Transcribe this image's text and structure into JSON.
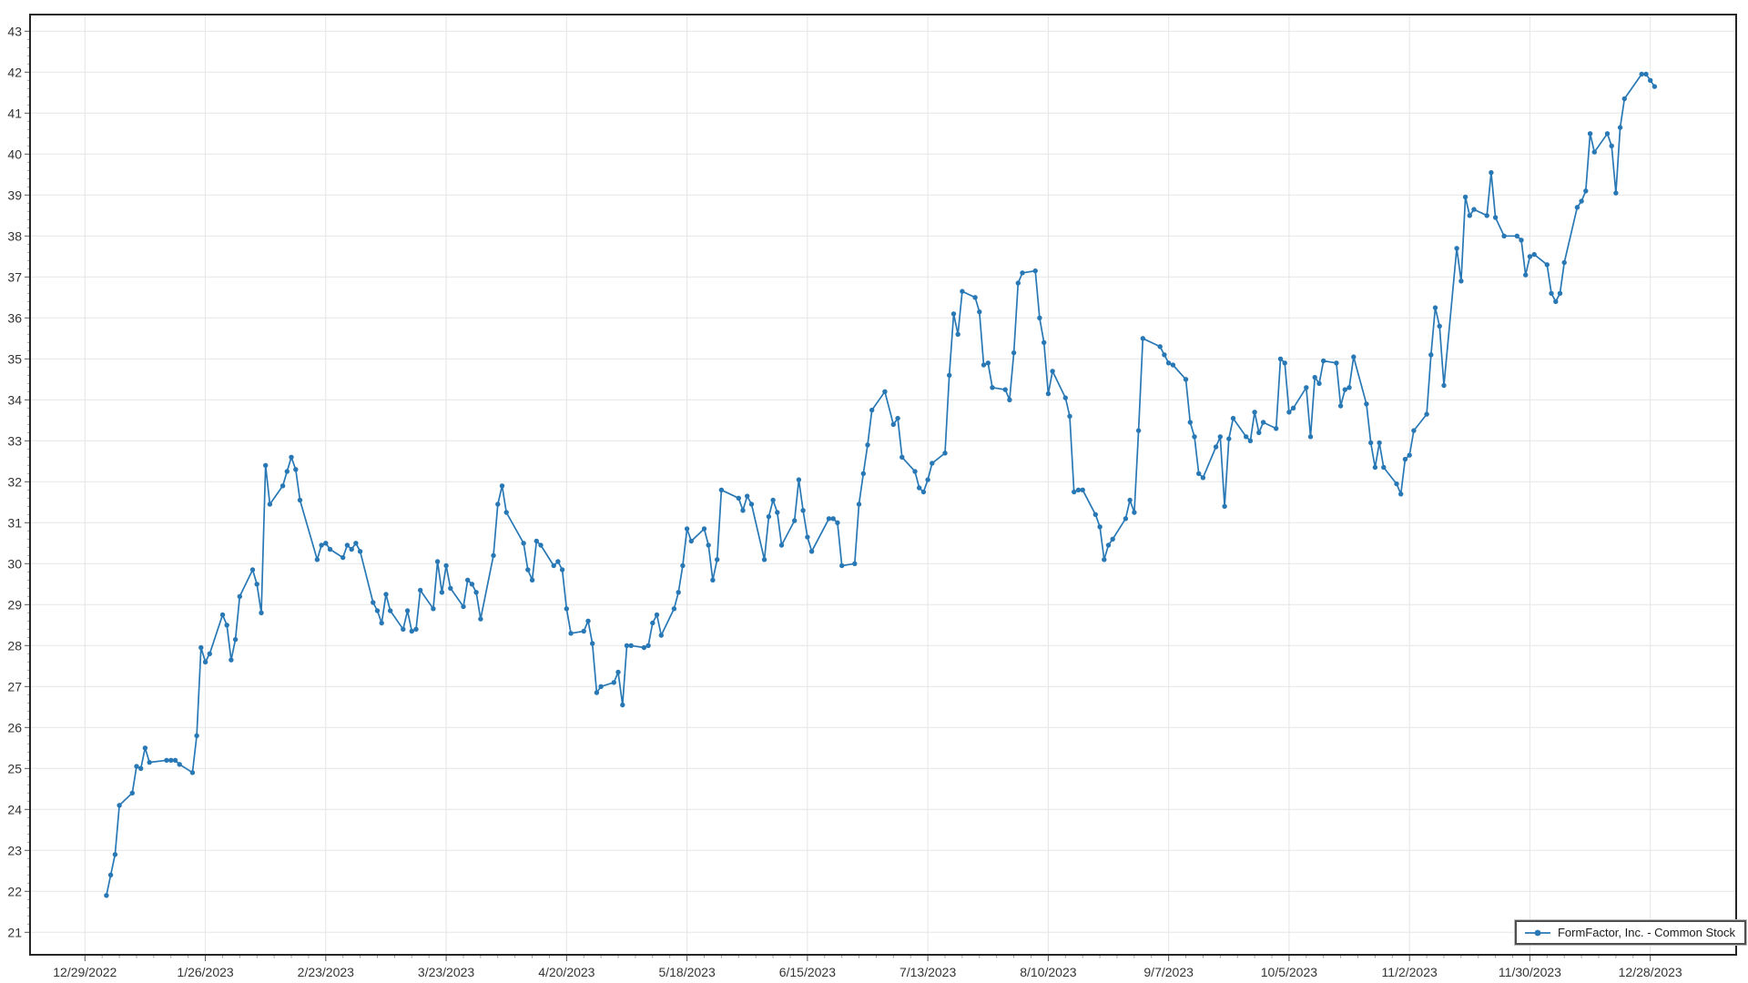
{
  "chart_data": {
    "type": "line",
    "title": "",
    "legend": {
      "label": "FormFactor, Inc. - Common Stock",
      "position": "bottom-right"
    },
    "line_color": "#2878b5",
    "grid": true,
    "x_axis": {
      "tick_labels": [
        "12/29/2022",
        "1/26/2023",
        "2/23/2023",
        "3/23/2023",
        "4/20/2023",
        "5/18/2023",
        "6/15/2023",
        "7/13/2023",
        "8/10/2023",
        "9/7/2023",
        "10/5/2023",
        "11/2/2023",
        "11/30/2023",
        "12/28/2023"
      ],
      "tick_interval_days": 28
    },
    "y_axis": {
      "min": 21,
      "max": 43,
      "tick_step": 1,
      "ticks": [
        21,
        22,
        23,
        24,
        25,
        26,
        27,
        28,
        29,
        30,
        31,
        32,
        33,
        34,
        35,
        36,
        37,
        38,
        39,
        40,
        41,
        42,
        43
      ]
    },
    "series": [
      {
        "name": "FormFactor, Inc. - Common Stock",
        "dates": [
          "1/3",
          "1/4",
          "1/5",
          "1/6",
          "1/9",
          "1/10",
          "1/11",
          "1/12",
          "1/13",
          "1/17",
          "1/18",
          "1/19",
          "1/20",
          "1/23",
          "1/24",
          "1/25",
          "1/26",
          "1/27",
          "1/30",
          "1/31",
          "2/1",
          "2/2",
          "2/3",
          "2/6",
          "2/7",
          "2/8",
          "2/9",
          "2/10",
          "2/13",
          "2/14",
          "2/15",
          "2/16",
          "2/17",
          "2/21",
          "2/22",
          "2/23",
          "2/24",
          "2/27",
          "2/28",
          "3/1",
          "3/2",
          "3/3",
          "3/6",
          "3/7",
          "3/8",
          "3/9",
          "3/10",
          "3/13",
          "3/14",
          "3/15",
          "3/16",
          "3/17",
          "3/20",
          "3/21",
          "3/22",
          "3/23",
          "3/24",
          "3/27",
          "3/28",
          "3/29",
          "3/30",
          "3/31",
          "4/3",
          "4/4",
          "4/5",
          "4/6",
          "4/10",
          "4/11",
          "4/12",
          "4/13",
          "4/14",
          "4/17",
          "4/18",
          "4/19",
          "4/20",
          "4/21",
          "4/24",
          "4/25",
          "4/26",
          "4/27",
          "4/28",
          "5/1",
          "5/2",
          "5/3",
          "5/4",
          "5/5",
          "5/8",
          "5/9",
          "5/10",
          "5/11",
          "5/12",
          "5/15",
          "5/16",
          "5/17",
          "5/18",
          "5/19",
          "5/22",
          "5/23",
          "5/24",
          "5/25",
          "5/26",
          "5/30",
          "5/31",
          "6/1",
          "6/2",
          "6/5",
          "6/6",
          "6/7",
          "6/8",
          "6/9",
          "6/12",
          "6/13",
          "6/14",
          "6/15",
          "6/16",
          "6/20",
          "6/21",
          "6/22",
          "6/23",
          "6/26",
          "6/27",
          "6/28",
          "6/29",
          "6/30",
          "7/3",
          "7/5",
          "7/6",
          "7/7",
          "7/10",
          "7/11",
          "7/12",
          "7/13",
          "7/14",
          "7/17",
          "7/18",
          "7/19",
          "7/20",
          "7/21",
          "7/24",
          "7/25",
          "7/26",
          "7/27",
          "7/28",
          "7/31",
          "8/1",
          "8/2",
          "8/3",
          "8/4",
          "8/7",
          "8/8",
          "8/9",
          "8/10",
          "8/11",
          "8/14",
          "8/15",
          "8/16",
          "8/17",
          "8/18",
          "8/21",
          "8/22",
          "8/23",
          "8/24",
          "8/25",
          "8/28",
          "8/29",
          "8/30",
          "8/31",
          "9/1",
          "9/5",
          "9/6",
          "9/7",
          "9/8",
          "9/11",
          "9/12",
          "9/13",
          "9/14",
          "9/15",
          "9/18",
          "9/19",
          "9/20",
          "9/21",
          "9/22",
          "9/25",
          "9/26",
          "9/27",
          "9/28",
          "9/29",
          "10/2",
          "10/3",
          "10/4",
          "10/5",
          "10/6",
          "10/9",
          "10/10",
          "10/11",
          "10/12",
          "10/13",
          "10/16",
          "10/17",
          "10/18",
          "10/19",
          "10/20",
          "10/23",
          "10/24",
          "10/25",
          "10/26",
          "10/27",
          "10/30",
          "10/31",
          "11/1",
          "11/2",
          "11/3",
          "11/6",
          "11/7",
          "11/8",
          "11/9",
          "11/10",
          "11/13",
          "11/14",
          "11/15",
          "11/16",
          "11/17",
          "11/20",
          "11/21",
          "11/22",
          "11/24",
          "11/27",
          "11/28",
          "11/29",
          "11/30",
          "12/1",
          "12/4",
          "12/5",
          "12/6",
          "12/7",
          "12/8",
          "12/11",
          "12/12",
          "12/13",
          "12/14",
          "12/15",
          "12/18",
          "12/19",
          "12/20",
          "12/21",
          "12/22",
          "12/26",
          "12/27",
          "12/28",
          "12/29"
        ],
        "values": [
          21.9,
          22.4,
          22.9,
          24.1,
          24.4,
          25.05,
          25.0,
          25.5,
          25.15,
          25.2,
          25.2,
          25.2,
          25.1,
          24.9,
          25.8,
          27.95,
          27.6,
          27.8,
          28.75,
          28.5,
          27.65,
          28.15,
          29.2,
          29.85,
          29.5,
          28.8,
          32.4,
          31.45,
          31.9,
          32.25,
          32.6,
          32.3,
          31.55,
          30.1,
          30.45,
          30.5,
          30.35,
          30.15,
          30.45,
          30.35,
          30.5,
          30.3,
          29.05,
          28.85,
          28.55,
          29.25,
          28.85,
          28.4,
          28.85,
          28.35,
          28.4,
          29.35,
          28.9,
          30.05,
          29.3,
          29.95,
          29.4,
          28.95,
          29.6,
          29.5,
          29.3,
          28.65,
          30.2,
          31.45,
          31.9,
          31.25,
          30.5,
          29.85,
          29.6,
          30.55,
          30.45,
          29.95,
          30.05,
          29.85,
          28.9,
          28.3,
          28.35,
          28.6,
          28.05,
          26.85,
          27.0,
          27.1,
          27.35,
          26.55,
          28.0,
          28.0,
          27.95,
          28.0,
          28.55,
          28.75,
          28.25,
          28.9,
          29.3,
          29.95,
          30.85,
          30.55,
          30.85,
          30.45,
          29.6,
          30.1,
          31.8,
          31.6,
          31.3,
          31.65,
          31.45,
          30.1,
          31.15,
          31.55,
          31.25,
          30.45,
          31.05,
          32.05,
          31.3,
          30.65,
          30.3,
          31.1,
          31.1,
          31.0,
          29.95,
          30.0,
          31.45,
          32.2,
          32.9,
          33.75,
          34.2,
          33.4,
          33.55,
          32.6,
          32.25,
          31.85,
          31.75,
          32.05,
          32.45,
          32.7,
          34.6,
          36.1,
          35.6,
          36.65,
          36.5,
          36.15,
          34.85,
          34.9,
          34.3,
          34.25,
          34.0,
          35.15,
          36.85,
          37.1,
          37.15,
          36.0,
          35.4,
          34.15,
          34.7,
          34.05,
          33.6,
          31.75,
          31.8,
          31.8,
          31.2,
          30.9,
          30.1,
          30.45,
          30.6,
          31.1,
          31.55,
          31.25,
          33.25,
          35.5,
          35.3,
          35.1,
          34.9,
          34.85,
          34.5,
          33.45,
          33.1,
          32.2,
          32.1,
          32.85,
          33.1,
          31.4,
          33.05,
          33.55,
          33.1,
          33.0,
          33.7,
          33.2,
          33.45,
          33.3,
          35.0,
          34.9,
          33.7,
          33.8,
          34.3,
          33.1,
          34.55,
          34.4,
          34.95,
          34.9,
          33.85,
          34.25,
          34.3,
          35.05,
          33.9,
          32.95,
          32.35,
          32.95,
          32.35,
          31.95,
          31.7,
          32.55,
          32.65,
          33.25,
          33.65,
          35.1,
          36.25,
          35.8,
          34.35,
          37.7,
          36.9,
          38.95,
          38.5,
          38.65,
          38.5,
          39.55,
          38.45,
          38.0,
          38.0,
          37.9,
          37.05,
          37.5,
          37.55,
          37.3,
          36.6,
          36.4,
          36.6,
          37.35,
          38.7,
          38.85,
          39.1,
          40.5,
          40.05,
          40.5,
          40.2,
          39.05,
          40.65,
          41.35,
          41.95,
          41.95,
          41.8,
          41.65
        ]
      }
    ]
  }
}
